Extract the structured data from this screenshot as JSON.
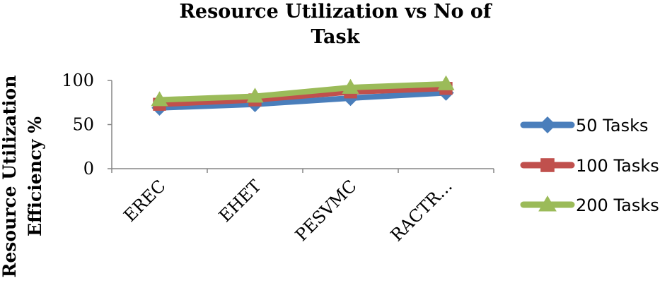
{
  "chart_data": {
    "type": "line",
    "title_lines": [
      "Resource Utilization vs No of",
      "Task"
    ],
    "ylabel_lines": [
      "Resource Utilization",
      "Efficiency %"
    ],
    "xlabel": "",
    "categories": [
      "EREC",
      "EHET",
      "PESVMC",
      "RACTR..."
    ],
    "ylim": [
      0,
      100
    ],
    "yticks": [
      0,
      50,
      100
    ],
    "grid": false,
    "legend_position": "right",
    "series": [
      {
        "name": "50 Tasks",
        "values": [
          69,
          73,
          80,
          86
        ],
        "color": "#4a7ebb",
        "marker": "diamond"
      },
      {
        "name": "100 Tasks",
        "values": [
          73,
          78,
          87,
          91
        ],
        "color": "#c0504d",
        "marker": "square"
      },
      {
        "name": "200 Tasks",
        "values": [
          78,
          82,
          92,
          96
        ],
        "color": "#9bbb59",
        "marker": "triangle"
      }
    ]
  }
}
